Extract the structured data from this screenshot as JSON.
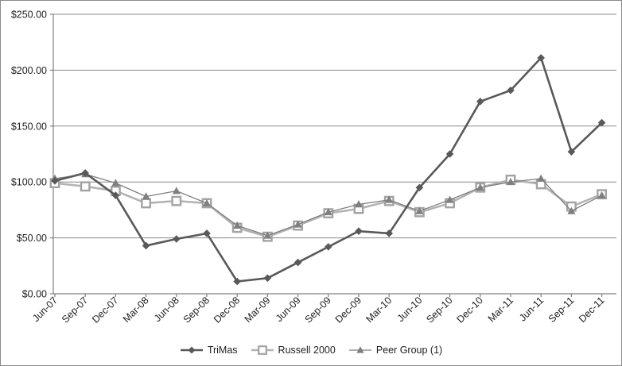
{
  "chart_data": {
    "type": "line",
    "title": "",
    "xlabel": "",
    "ylabel": "",
    "categories": [
      "Jun-07",
      "Sep-07",
      "Dec-07",
      "Mar-08",
      "Jun-08",
      "Sep-08",
      "Dec-08",
      "Mar-09",
      "Jun-09",
      "Sep-09",
      "Dec-09",
      "Mar-10",
      "Jun-10",
      "Sep-10",
      "Dec-10",
      "Mar-11",
      "Jun-11",
      "Sep-11",
      "Dec-11"
    ],
    "series": [
      {
        "name": "TriMas",
        "marker": "diamond",
        "color": "#595959",
        "line_width": 2.6,
        "z": 3,
        "values": [
          101,
          108,
          88,
          43,
          49,
          54,
          11,
          14,
          28,
          42,
          56,
          54,
          95,
          125,
          172,
          182,
          211,
          127,
          153
        ]
      },
      {
        "name": "Russell 2000",
        "marker": "open-square",
        "color": "#b3b3b3",
        "marker_color": "#a3a3a3",
        "line_width": 2.6,
        "z": 1,
        "values": [
          99,
          96,
          92,
          81,
          83,
          81,
          59,
          51,
          61,
          72,
          76,
          83,
          73,
          81,
          95,
          102,
          98,
          78,
          89
        ]
      },
      {
        "name": "Peer Group (1)",
        "marker": "triangle",
        "color": "#7f7f7f",
        "line_width": 1.3,
        "z": 2,
        "values": [
          103,
          107,
          99,
          87,
          92,
          81,
          61,
          52,
          62,
          73,
          80,
          84,
          74,
          84,
          95,
          100,
          103,
          74,
          88
        ]
      }
    ],
    "ylim": [
      0,
      250
    ],
    "y_tick_step": 50,
    "y_tick_labels": [
      "$0.00",
      "$50.00",
      "$100.00",
      "$150.00",
      "$200.00",
      "$250.00"
    ],
    "grid": "horizontal",
    "legend_position": "bottom",
    "colors": {
      "axis": "#808080",
      "grid": "#898989",
      "tick_label": "#1f1f1f",
      "background": "#ffffff"
    }
  }
}
